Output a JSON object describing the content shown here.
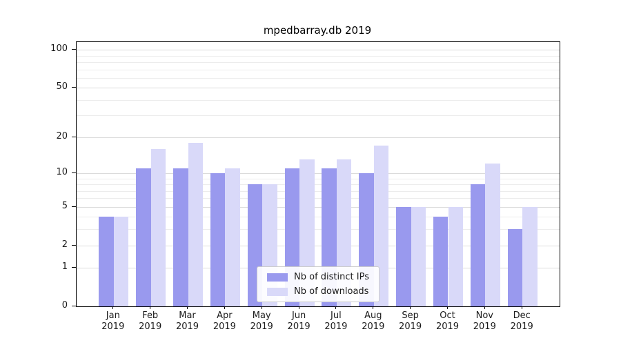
{
  "chart_data": {
    "type": "bar",
    "title": "mpedbarray.db 2019",
    "categories": [
      "Jan",
      "Feb",
      "Mar",
      "Apr",
      "May",
      "Jun",
      "Jul",
      "Aug",
      "Sep",
      "Oct",
      "Nov",
      "Dec"
    ],
    "x_year_label": "2019",
    "series": [
      {
        "name": "Nb of distinct IPs",
        "color": "#9999ee",
        "values": [
          4,
          11,
          11,
          10,
          8,
          11,
          11,
          10,
          5,
          4,
          8,
          3
        ]
      },
      {
        "name": "Nb of downloads",
        "color": "#d9d9f9",
        "values": [
          4,
          16,
          18,
          11,
          8,
          13,
          13,
          17,
          5,
          5,
          12,
          5
        ]
      }
    ],
    "scale": "log1p",
    "ylim": [
      0,
      115
    ],
    "yticks": [
      0,
      1,
      2,
      5,
      10,
      20,
      50,
      100
    ],
    "gridlines": [
      1,
      2,
      3,
      4,
      5,
      6,
      7,
      8,
      9,
      10,
      20,
      30,
      40,
      50,
      60,
      70,
      80,
      90,
      100
    ],
    "legend": {
      "position": "lower center"
    },
    "grid": "on"
  }
}
